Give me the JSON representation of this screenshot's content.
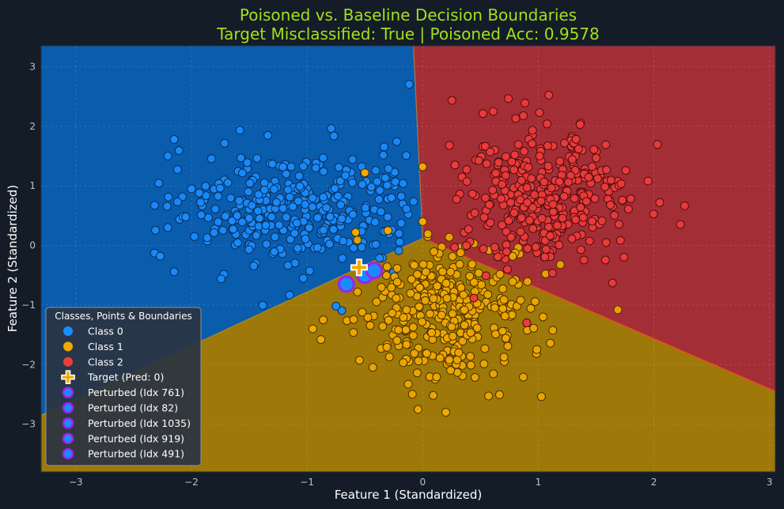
{
  "chart_data": {
    "type": "scatter",
    "title_line1": "Poisoned vs. Baseline Decision Boundaries",
    "title_line2": "Target Misclassified: True | Poisoned Acc: 0.9578",
    "xlabel": "Feature 1 (Standardized)",
    "ylabel": "Feature 2 (Standardized)",
    "xlim": [
      -3.3,
      3.05
    ],
    "ylim": [
      -3.8,
      3.35
    ],
    "xticks": [
      -3,
      -2,
      -1,
      0,
      1,
      2,
      3
    ],
    "yticks": [
      -3,
      -2,
      -1,
      0,
      1,
      2,
      3
    ],
    "grid": true,
    "legend": {
      "title": "Classes, Points & Boundaries",
      "placement": "lower-left",
      "entries": [
        {
          "label": "Class 0",
          "marker": "dot",
          "color": "#1a8cff"
        },
        {
          "label": "Class 1",
          "marker": "dot",
          "color": "#f2a900"
        },
        {
          "label": "Class 2",
          "marker": "dot",
          "color": "#ef3b3b"
        },
        {
          "label": "Target (Pred: 0)",
          "marker": "plus",
          "color": "#f2a900"
        },
        {
          "label": "Perturbed (Idx 761)",
          "marker": "ring",
          "color": "#1a8cff"
        },
        {
          "label": "Perturbed (Idx 82)",
          "marker": "ring",
          "color": "#1a8cff"
        },
        {
          "label": "Perturbed (Idx 1035)",
          "marker": "ring",
          "color": "#1a8cff"
        },
        {
          "label": "Perturbed (Idx 919)",
          "marker": "ring",
          "color": "#1a8cff"
        },
        {
          "label": "Perturbed (Idx 491)",
          "marker": "ring",
          "color": "#1a8cff"
        }
      ]
    },
    "regions": {
      "junction": [
        0.0,
        0.12
      ],
      "class0_color": "#0a5cad",
      "class1_color": "#9e7808",
      "class2_color": "#a42e36",
      "boundary_01": [
        [
          -3.3,
          -2.85
        ],
        [
          0.0,
          0.12
        ]
      ],
      "boundary_02": [
        [
          0.0,
          0.12
        ],
        [
          -0.08,
          3.35
        ]
      ],
      "boundary_12": [
        [
          0.0,
          0.12
        ],
        [
          3.05,
          -2.45
        ]
      ]
    },
    "series": [
      {
        "name": "Class 0",
        "color": "#1a8cff",
        "center": [
          -1.05,
          0.65
        ],
        "spread": [
          0.5,
          0.55
        ],
        "count": 330,
        "seed": 11
      },
      {
        "name": "Class 1",
        "color": "#f2a900",
        "center": [
          0.2,
          -1.1
        ],
        "spread": [
          0.35,
          0.55
        ],
        "count": 330,
        "seed": 29
      },
      {
        "name": "Class 2",
        "color": "#ef3b3b",
        "center": [
          1.05,
          0.85
        ],
        "spread": [
          0.38,
          0.55
        ],
        "count": 330,
        "seed": 47
      }
    ],
    "target": {
      "label": "Target (Pred: 0)",
      "x": -0.55,
      "y": -0.37
    },
    "perturbed": [
      {
        "idx": "761",
        "x": -0.5,
        "y": -0.5
      },
      {
        "idx": "82",
        "x": -0.42,
        "y": -0.42
      },
      {
        "idx": "1035",
        "x": -0.66,
        "y": -0.65
      },
      {
        "idx": "919",
        "x": -0.5,
        "y": -0.5
      },
      {
        "idx": "491",
        "x": -0.42,
        "y": -0.42
      }
    ],
    "outliers": [
      {
        "cls": 0,
        "x": -2.15,
        "y": 1.78
      },
      {
        "cls": 0,
        "x": -2.27,
        "y": -0.18
      },
      {
        "cls": 0,
        "x": -2.0,
        "y": 0.95
      },
      {
        "cls": 0,
        "x": -2.05,
        "y": 0.48
      },
      {
        "cls": 0,
        "x": -0.27,
        "y": 0.8
      },
      {
        "cls": 0,
        "x": -0.75,
        "y": -1.02
      },
      {
        "cls": 1,
        "x": 0.0,
        "y": 1.32
      },
      {
        "cls": 1,
        "x": 0.0,
        "y": 0.4
      },
      {
        "cls": 1,
        "x": -0.58,
        "y": 0.22
      },
      {
        "cls": 1,
        "x": -0.3,
        "y": 0.25
      },
      {
        "cls": 1,
        "x": -0.5,
        "y": 1.22
      },
      {
        "cls": 1,
        "x": 0.2,
        "y": -2.8
      },
      {
        "cls": 1,
        "x": -0.95,
        "y": -1.4
      },
      {
        "cls": 1,
        "x": -0.88,
        "y": -1.58
      },
      {
        "cls": 2,
        "x": 0.9,
        "y": -1.3
      },
      {
        "cls": 2,
        "x": 0.28,
        "y": 1.35
      },
      {
        "cls": 2,
        "x": 1.95,
        "y": 1.08
      },
      {
        "cls": 2,
        "x": 2.05,
        "y": 0.72
      }
    ]
  }
}
